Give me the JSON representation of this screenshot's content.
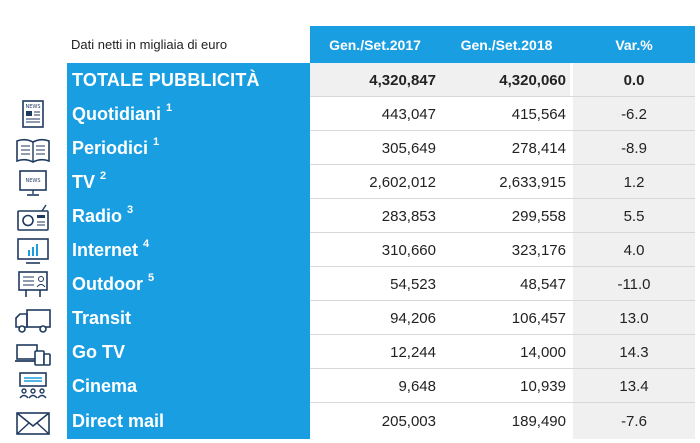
{
  "header": {
    "label": "Dati netti in migliaia di euro",
    "col1": "Gen./Set.2017",
    "col2": "Gen./Set.2018",
    "col3": "Var.%"
  },
  "rows": [
    {
      "label": "TOTALE PUBBLICITÀ",
      "note": "",
      "v1": "4,320,847",
      "v2": "4,320,060",
      "var": "0.0",
      "icon": ""
    },
    {
      "label": "Quotidiani",
      "note": "1",
      "v1": "443,047",
      "v2": "415,564",
      "var": "-6.2",
      "icon": "newspaper-icon"
    },
    {
      "label": "Periodici",
      "note": "1",
      "v1": "305,649",
      "v2": "278,414",
      "var": "-8.9",
      "icon": "magazine-icon"
    },
    {
      "label": "TV",
      "note": "2",
      "v1": "2,602,012",
      "v2": "2,633,915",
      "var": "1.2",
      "icon": "tv-icon"
    },
    {
      "label": "Radio",
      "note": "3",
      "v1": "283,853",
      "v2": "299,558",
      "var": "5.5",
      "icon": "radio-icon"
    },
    {
      "label": "Internet",
      "note": "4",
      "v1": "310,660",
      "v2": "323,176",
      "var": "4.0",
      "icon": "monitor-icon"
    },
    {
      "label": "Outdoor",
      "note": "5",
      "v1": "54,523",
      "v2": "48,547",
      "var": "-11.0",
      "icon": "billboard-icon"
    },
    {
      "label": "Transit",
      "note": "",
      "v1": "94,206",
      "v2": "106,457",
      "var": "13.0",
      "icon": "truck-icon"
    },
    {
      "label": "Go TV",
      "note": "",
      "v1": "12,244",
      "v2": "14,000",
      "var": "14.3",
      "icon": "devices-icon"
    },
    {
      "label": "Cinema",
      "note": "",
      "v1": "9,648",
      "v2": "10,939",
      "var": "13.4",
      "icon": "cinema-icon"
    },
    {
      "label": "Direct mail",
      "note": "",
      "v1": "205,003",
      "v2": "189,490",
      "var": "-7.6",
      "icon": "envelope-icon"
    }
  ],
  "colors": {
    "accent": "#1a9ee2",
    "shade": "#f0f0f0",
    "icon": "#1f3a5f"
  }
}
